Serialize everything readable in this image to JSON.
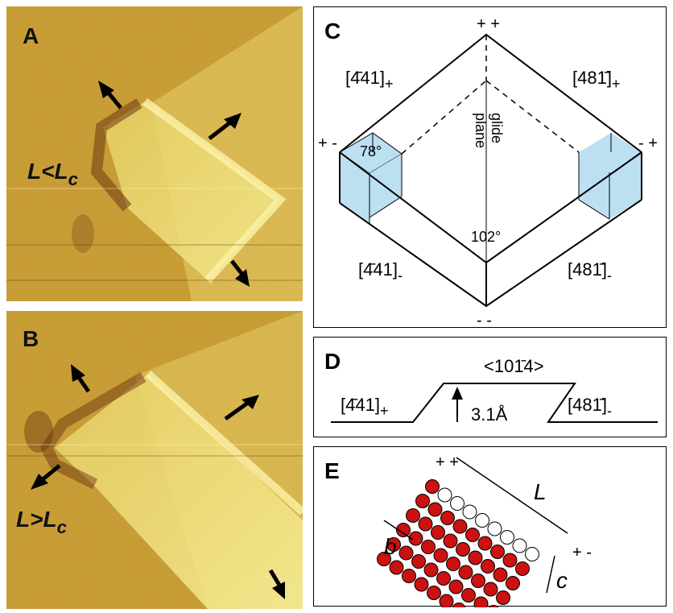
{
  "panels": {
    "A": {
      "letter": "A",
      "label_main": "L<L",
      "label_sub": "c"
    },
    "B": {
      "letter": "B",
      "label_main": "L>L",
      "label_sub": "c"
    },
    "C": {
      "letter": "C",
      "corner_top": "+ +",
      "corner_left": "+ -",
      "corner_right": "- +",
      "corner_bottom": "- -",
      "edge_ul": "[4̄41]",
      "edge_ul_sub": "+",
      "edge_ur": "[481̄]",
      "edge_ur_sub": "+",
      "edge_ll": "[4̄41]",
      "edge_ll_sub": "-",
      "edge_lr": "[481̄]",
      "edge_lr_sub": "-",
      "glide_1": "glide",
      "glide_2": "plane",
      "angle_left": "78°",
      "angle_bottom": "102°"
    },
    "D": {
      "letter": "D",
      "left_label": "[4̄41]",
      "left_sub": "+",
      "top_label": "<101̄4>",
      "step_label": "3.1Å",
      "right_label": "[481̄]",
      "right_sub": "-"
    },
    "E": {
      "letter": "E",
      "corner_top": "+ +",
      "corner_right": "+ -",
      "label_L": "L",
      "label_b": "b",
      "label_c": "c"
    }
  },
  "colors": {
    "image_base": "#c9a23a",
    "image_highlight": "#f3e88a",
    "image_shadow": "#7a4a1c",
    "face_blue": "#bcdff2",
    "atom_red": "#cc1111",
    "arrow_black": "#000000"
  }
}
